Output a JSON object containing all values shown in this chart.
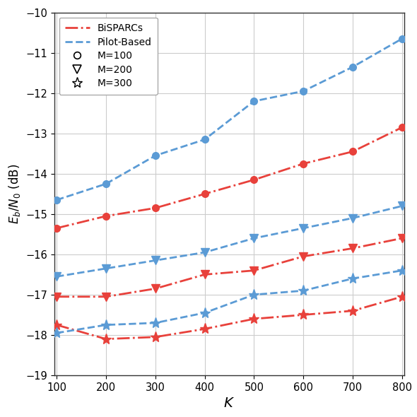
{
  "K": [
    100,
    200,
    300,
    400,
    500,
    600,
    700,
    800
  ],
  "bisparcs_M100": [
    -15.35,
    -15.05,
    -14.85,
    -14.5,
    -14.15,
    -13.75,
    -13.45,
    -12.85
  ],
  "bisparcs_M200": [
    -17.05,
    -17.05,
    -16.85,
    -16.5,
    -16.4,
    -16.05,
    -15.85,
    -15.6
  ],
  "bisparcs_M300": [
    -17.75,
    -18.1,
    -18.05,
    -17.85,
    -17.6,
    -17.5,
    -17.4,
    -17.05
  ],
  "pilot_M100": [
    -14.65,
    -14.25,
    -13.55,
    -13.15,
    -12.2,
    -11.95,
    -11.35,
    -10.65
  ],
  "pilot_M200": [
    -16.55,
    -16.35,
    -16.15,
    -15.95,
    -15.6,
    -15.35,
    -15.1,
    -14.8
  ],
  "pilot_M300": [
    -17.95,
    -17.75,
    -17.7,
    -17.45,
    -17.0,
    -16.9,
    -16.6,
    -16.4
  ],
  "red_color": "#e8413b",
  "blue_color": "#5b9bd5",
  "ylim": [
    -19,
    -10
  ],
  "xlim": [
    95,
    805
  ],
  "ylabel": "$E_b/N_0$ (dB)",
  "xlabel": "$K$",
  "yticks": [
    -19,
    -18,
    -17,
    -16,
    -15,
    -14,
    -13,
    -12,
    -11,
    -10
  ],
  "xticks": [
    100,
    200,
    300,
    400,
    500,
    600,
    700,
    800
  ],
  "legend_bisparcs": "BiSPARCs",
  "legend_pilot": "Pilot-Based",
  "legend_m100": "M=100",
  "legend_m200": "M=200",
  "legend_m300": "M=300"
}
